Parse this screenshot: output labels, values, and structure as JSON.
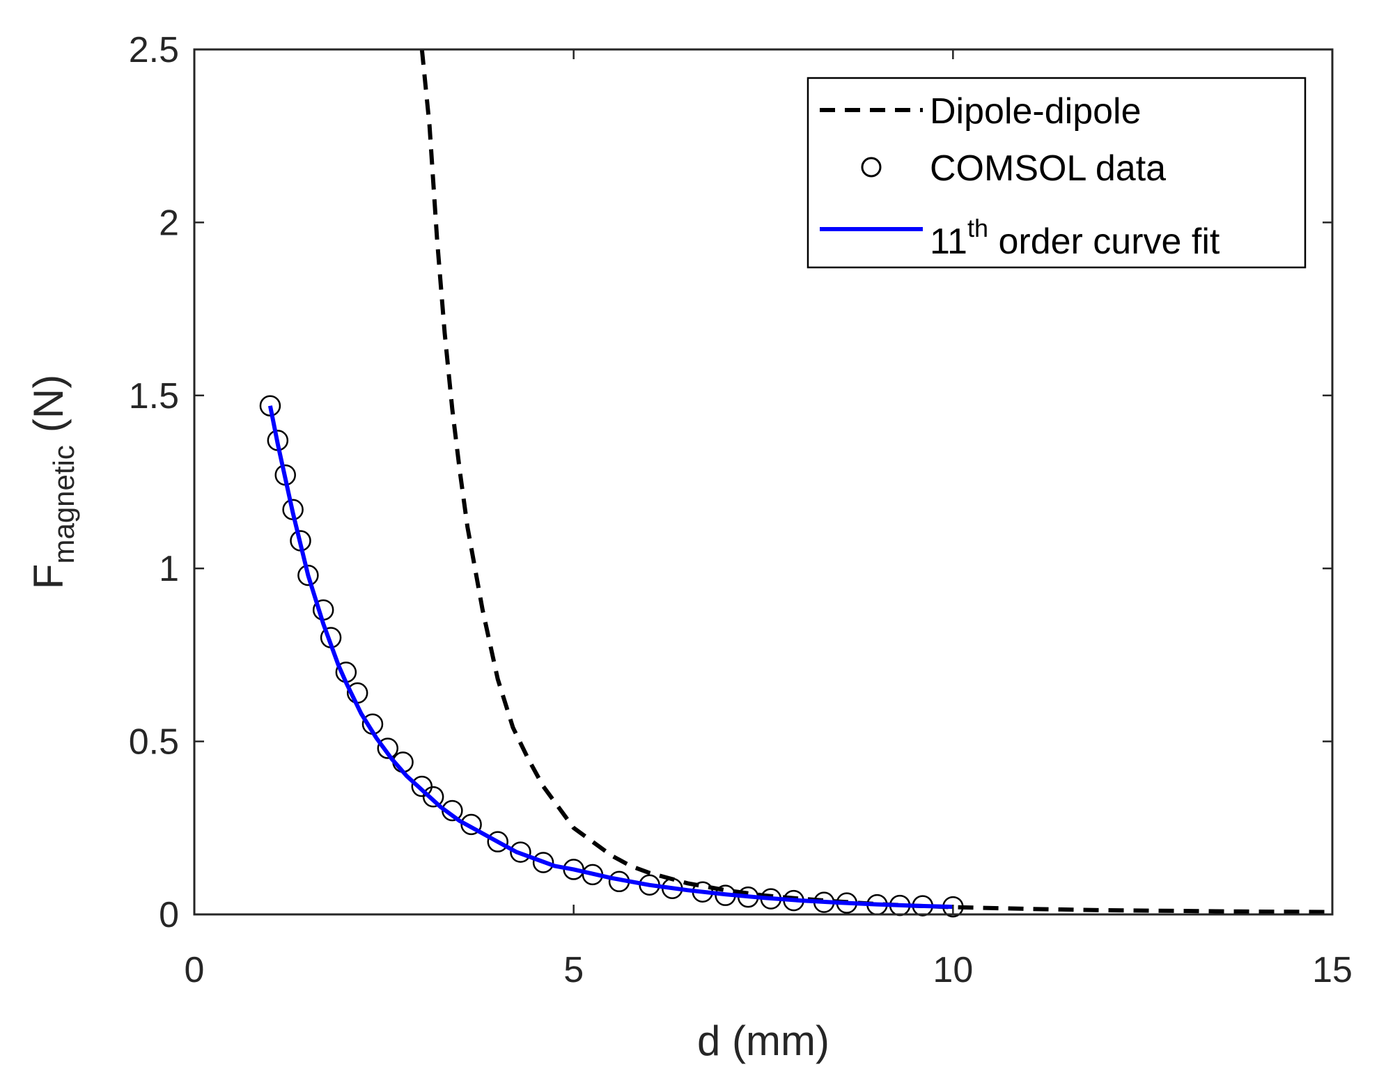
{
  "chart_data": {
    "type": "line",
    "xlabel": "d (mm)",
    "ylabel": {
      "main": "F",
      "subscript": "magnetic",
      "unit": "(N)"
    },
    "xlim": [
      0,
      15
    ],
    "ylim": [
      0,
      2.5
    ],
    "xticks": [
      0,
      5,
      10,
      15
    ],
    "xtick_labels": [
      "0",
      "5",
      "10",
      "15"
    ],
    "yticks": [
      0,
      0.5,
      1,
      1.5,
      2,
      2.5
    ],
    "ytick_labels": [
      "0",
      "0.5",
      "1",
      "1.5",
      "2",
      "2.5"
    ],
    "grid": false,
    "legend": {
      "placement": "top-right",
      "entries": [
        {
          "series": "dipole",
          "text": "Dipole-dipole"
        },
        {
          "series": "comsol",
          "text": "COMSOL data"
        },
        {
          "series": "fit",
          "text": "11",
          "superscript": "th",
          "suffix": " order curve fit"
        }
      ]
    },
    "series": [
      {
        "name": "Dipole-dipole",
        "style": "dashed",
        "color": "#000000",
        "x": [
          3.0,
          3.1,
          3.2,
          3.3,
          3.4,
          3.5,
          3.6,
          3.8,
          4.0,
          4.2,
          4.4,
          4.6,
          4.8,
          5.0,
          5.25,
          5.5,
          5.75,
          6.0,
          6.5,
          7.0,
          7.5,
          8.0,
          8.5,
          9.0,
          9.5,
          10.0,
          11.0,
          12.0,
          13.0,
          14.0,
          15.0
        ],
        "y": [
          2.52,
          2.28,
          1.95,
          1.68,
          1.46,
          1.28,
          1.12,
          0.88,
          0.68,
          0.54,
          0.45,
          0.37,
          0.31,
          0.25,
          0.21,
          0.17,
          0.14,
          0.12,
          0.09,
          0.07,
          0.055,
          0.045,
          0.037,
          0.03,
          0.025,
          0.021,
          0.016,
          0.012,
          0.01,
          0.008,
          0.007
        ]
      },
      {
        "name": "COMSOL data",
        "style": "markers",
        "marker": "circle",
        "color": "#000000",
        "x": [
          1.0,
          1.1,
          1.2,
          1.3,
          1.4,
          1.5,
          1.7,
          1.8,
          2.0,
          2.15,
          2.35,
          2.55,
          2.75,
          3.0,
          3.15,
          3.4,
          3.65,
          4.0,
          4.3,
          4.6,
          5.0,
          5.25,
          5.6,
          6.0,
          6.3,
          6.7,
          7.0,
          7.3,
          7.6,
          7.9,
          8.3,
          8.6,
          9.0,
          9.3,
          9.6,
          10.0
        ],
        "y": [
          1.47,
          1.37,
          1.27,
          1.17,
          1.08,
          0.98,
          0.88,
          0.8,
          0.7,
          0.64,
          0.55,
          0.48,
          0.44,
          0.37,
          0.34,
          0.3,
          0.26,
          0.21,
          0.18,
          0.15,
          0.13,
          0.115,
          0.095,
          0.085,
          0.075,
          0.065,
          0.055,
          0.05,
          0.045,
          0.04,
          0.035,
          0.033,
          0.028,
          0.026,
          0.025,
          0.022
        ]
      },
      {
        "name": "11th order curve fit",
        "style": "solid",
        "color": "#0000ff",
        "x": [
          1.0,
          1.1,
          1.2,
          1.3,
          1.4,
          1.5,
          1.6,
          1.7,
          1.8,
          1.9,
          2.0,
          2.2,
          2.4,
          2.6,
          2.8,
          3.0,
          3.25,
          3.5,
          3.75,
          4.0,
          4.25,
          4.5,
          4.75,
          5.0,
          5.5,
          6.0,
          6.5,
          7.0,
          7.5,
          8.0,
          8.5,
          9.0,
          9.5,
          10.0
        ],
        "y": [
          1.47,
          1.36,
          1.26,
          1.16,
          1.07,
          0.98,
          0.91,
          0.84,
          0.78,
          0.72,
          0.67,
          0.58,
          0.51,
          0.45,
          0.4,
          0.36,
          0.31,
          0.27,
          0.24,
          0.21,
          0.18,
          0.16,
          0.14,
          0.13,
          0.105,
          0.085,
          0.07,
          0.058,
          0.048,
          0.04,
          0.034,
          0.029,
          0.025,
          0.022
        ]
      }
    ]
  }
}
